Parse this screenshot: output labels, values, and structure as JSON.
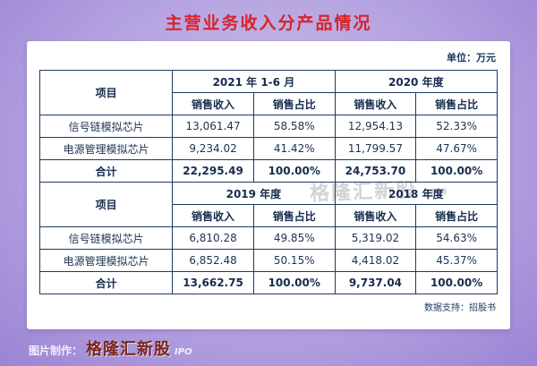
{
  "title": "主营业务收入分产品情况",
  "unit_label": "单位：万元",
  "watermark": {
    "text": "格隆汇新股",
    "suffix": "IPO"
  },
  "footer": {
    "data_support": "数据支持：招股书",
    "credit_label": "图片制作：",
    "brand": "格隆汇新股",
    "brand_suffix": "IPO"
  },
  "colors": {
    "title_red": "#d8232a",
    "table_border": "#1e3a60",
    "background_purple": "#9b84d4",
    "brand_maroon": "#7b241c"
  },
  "chart_data": {
    "type": "table",
    "title": "主营业务收入分产品情况",
    "unit": "万元",
    "row_header": "项目",
    "measure_headers": [
      "销售收入",
      "销售占比"
    ],
    "sections": [
      {
        "periods": [
          "2021 年 1-6 月",
          "2020 年度"
        ],
        "rows": [
          {
            "item": "信号链模拟芯片",
            "values": [
              "13,061.47",
              "58.58%",
              "12,954.13",
              "52.33%"
            ]
          },
          {
            "item": "电源管理模拟芯片",
            "values": [
              "9,234.02",
              "41.42%",
              "11,799.57",
              "47.67%"
            ]
          },
          {
            "item": "合计",
            "values": [
              "22,295.49",
              "100.00%",
              "24,753.70",
              "100.00%"
            ]
          }
        ]
      },
      {
        "periods": [
          "2019 年度",
          "2018 年度"
        ],
        "rows": [
          {
            "item": "信号链模拟芯片",
            "values": [
              "6,810.28",
              "49.85%",
              "5,319.02",
              "54.63%"
            ]
          },
          {
            "item": "电源管理模拟芯片",
            "values": [
              "6,852.48",
              "50.15%",
              "4,418.02",
              "45.37%"
            ]
          },
          {
            "item": "合计",
            "values": [
              "13,662.75",
              "100.00%",
              "9,737.04",
              "100.00%"
            ]
          }
        ]
      }
    ]
  }
}
